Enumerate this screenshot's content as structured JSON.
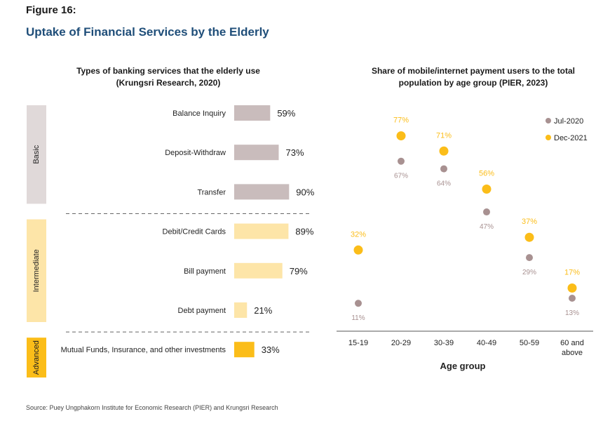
{
  "figure_label": "Figure 16:",
  "figure_title": "Uptake of Financial Services by the Elderly",
  "source": "Source: Puey Ungphakorn Institute for Economic Research (PIER) and Krungsri Research",
  "colors": {
    "basic": "#c9bcbc",
    "basic_band": "#e0d9d9",
    "intermediate": "#fde5a8",
    "intermediate_band": "#fde5a8",
    "advanced": "#fbbd19",
    "advanced_band": "#fbbd19",
    "jul2020": "#a89191",
    "dec2021": "#fbbd19",
    "title": "#1f4e79"
  },
  "chart_data": [
    {
      "type": "bar",
      "orientation": "horizontal",
      "title": "Types of banking services that the elderly use",
      "subtitle": "(Krungsri Research, 2020)",
      "xlim": [
        0,
        100
      ],
      "groups": [
        {
          "name": "Basic",
          "color_key": "basic",
          "items": [
            {
              "label": "Balance Inquiry",
              "value": 59,
              "value_label": "59%"
            },
            {
              "label": "Deposit-Withdraw",
              "value": 73,
              "value_label": "73%"
            },
            {
              "label": "Transfer",
              "value": 90,
              "value_label": "90%"
            }
          ]
        },
        {
          "name": "Intermediate",
          "color_key": "intermediate",
          "items": [
            {
              "label": "Debit/Credit Cards",
              "value": 89,
              "value_label": "89%"
            },
            {
              "label": "Bill payment",
              "value": 79,
              "value_label": "79%"
            },
            {
              "label": "Debt payment",
              "value": 21,
              "value_label": "21%"
            }
          ]
        },
        {
          "name": "Advanced",
          "color_key": "advanced",
          "items": [
            {
              "label": "Mutual Funds, Insurance, and other investments",
              "value": 33,
              "value_label": "33%"
            }
          ]
        }
      ]
    },
    {
      "type": "scatter",
      "title": "Share of mobile/internet payment users to the total",
      "subtitle": "population by age group (PIER, 2023)",
      "xlabel": "Age group",
      "ylabel": "",
      "ylim": [
        0,
        90
      ],
      "categories": [
        [
          "15-19"
        ],
        [
          "20-29"
        ],
        [
          "30-39"
        ],
        [
          "40-49"
        ],
        [
          "50-59"
        ],
        [
          "60 and",
          "above"
        ]
      ],
      "legend_position": "top-right",
      "series": [
        {
          "name": "Jul-2020",
          "color_key": "jul2020",
          "values": [
            11,
            67,
            64,
            47,
            29,
            13
          ],
          "value_labels": [
            "11%",
            "67%",
            "64%",
            "47%",
            "29%",
            "13%"
          ],
          "label_position": "below"
        },
        {
          "name": "Dec-2021",
          "color_key": "dec2021",
          "values": [
            32,
            77,
            71,
            56,
            37,
            17
          ],
          "value_labels": [
            "32%",
            "77%",
            "71%",
            "56%",
            "37%",
            "17%"
          ],
          "label_position": "above"
        }
      ]
    }
  ]
}
